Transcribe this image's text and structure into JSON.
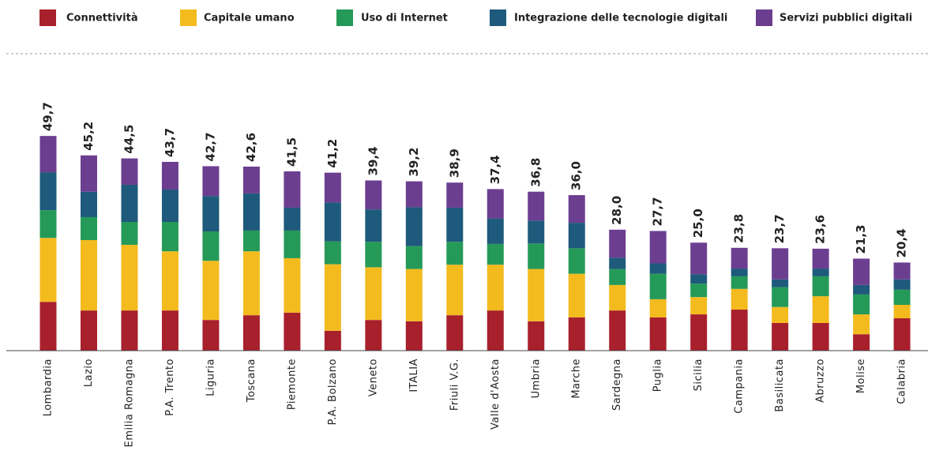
{
  "chart_data": {
    "type": "stacked_bar",
    "categories": [
      "Lombardia",
      "Lazio",
      "Emilia Romagna",
      "P.A. Trento",
      "Liguria",
      "Toscana",
      "Piemonte",
      "P.A. Bolzano",
      "Veneto",
      "ITALIA",
      "Friuli V.G.",
      "Valle d'Aosta",
      "Umbria",
      "Marche",
      "Sardegna",
      "Puglia",
      "Sicilia",
      "Campania",
      "Basilicata",
      "Abruzzo",
      "Molise",
      "Calabria"
    ],
    "series": [
      {
        "name": "Connettività",
        "color": "#a8202c",
        "values": [
          11.3,
          9.3,
          9.3,
          9.3,
          7.1,
          8.2,
          8.8,
          4.6,
          7.1,
          6.8,
          8.2,
          9.3,
          6.8,
          7.7,
          9.3,
          7.7,
          8.4,
          9.5,
          6.4,
          6.4,
          3.8,
          7.5
        ]
      },
      {
        "name": "Capitale umano",
        "color": "#f4bb1f",
        "values": [
          14.8,
          16.3,
          15.2,
          13.7,
          13.7,
          14.8,
          12.6,
          15.4,
          12.2,
          12.1,
          11.7,
          10.6,
          12.1,
          10.1,
          5.9,
          4.2,
          4.0,
          4.8,
          3.7,
          6.2,
          4.6,
          3.1
        ]
      },
      {
        "name": "Uso di Internet",
        "color": "#259a58",
        "values": [
          6.4,
          5.3,
          5.3,
          6.8,
          6.8,
          4.8,
          6.4,
          5.3,
          5.9,
          5.3,
          5.3,
          4.8,
          5.9,
          5.9,
          3.7,
          5.9,
          3.1,
          2.9,
          4.6,
          4.6,
          4.6,
          3.5
        ]
      },
      {
        "name": "Integrazione delle tecnologie digitali",
        "color": "#1e5a7b",
        "values": [
          8.8,
          5.9,
          8.6,
          7.5,
          8.2,
          8.6,
          5.3,
          9.0,
          7.5,
          9.0,
          7.9,
          5.9,
          5.3,
          5.9,
          2.6,
          2.4,
          2.2,
          1.8,
          1.8,
          1.8,
          2.2,
          2.4
        ]
      },
      {
        "name": "Servizi pubblici digitali",
        "color": "#6c3e90",
        "values": [
          8.4,
          8.4,
          6.1,
          6.4,
          6.9,
          6.2,
          8.4,
          6.9,
          6.7,
          6.0,
          5.8,
          6.8,
          6.7,
          6.4,
          6.5,
          7.5,
          7.3,
          4.8,
          7.2,
          4.6,
          6.1,
          3.9
        ]
      }
    ],
    "totals": [
      49.7,
      45.2,
      44.5,
      43.7,
      42.7,
      42.6,
      41.5,
      41.2,
      39.4,
      39.2,
      38.9,
      37.4,
      36.8,
      36.0,
      28.0,
      27.7,
      25.0,
      23.8,
      23.7,
      23.6,
      21.3,
      20.4
    ],
    "total_labels": [
      "49,7",
      "45,2",
      "44,5",
      "43,7",
      "42,7",
      "42,6",
      "41,5",
      "41,2",
      "39,4",
      "39,2",
      "38,9",
      "37,4",
      "36,8",
      "36,0",
      "28,0",
      "27,7",
      "25,0",
      "23,8",
      "23,7",
      "23,6",
      "21,3",
      "20,4"
    ]
  }
}
